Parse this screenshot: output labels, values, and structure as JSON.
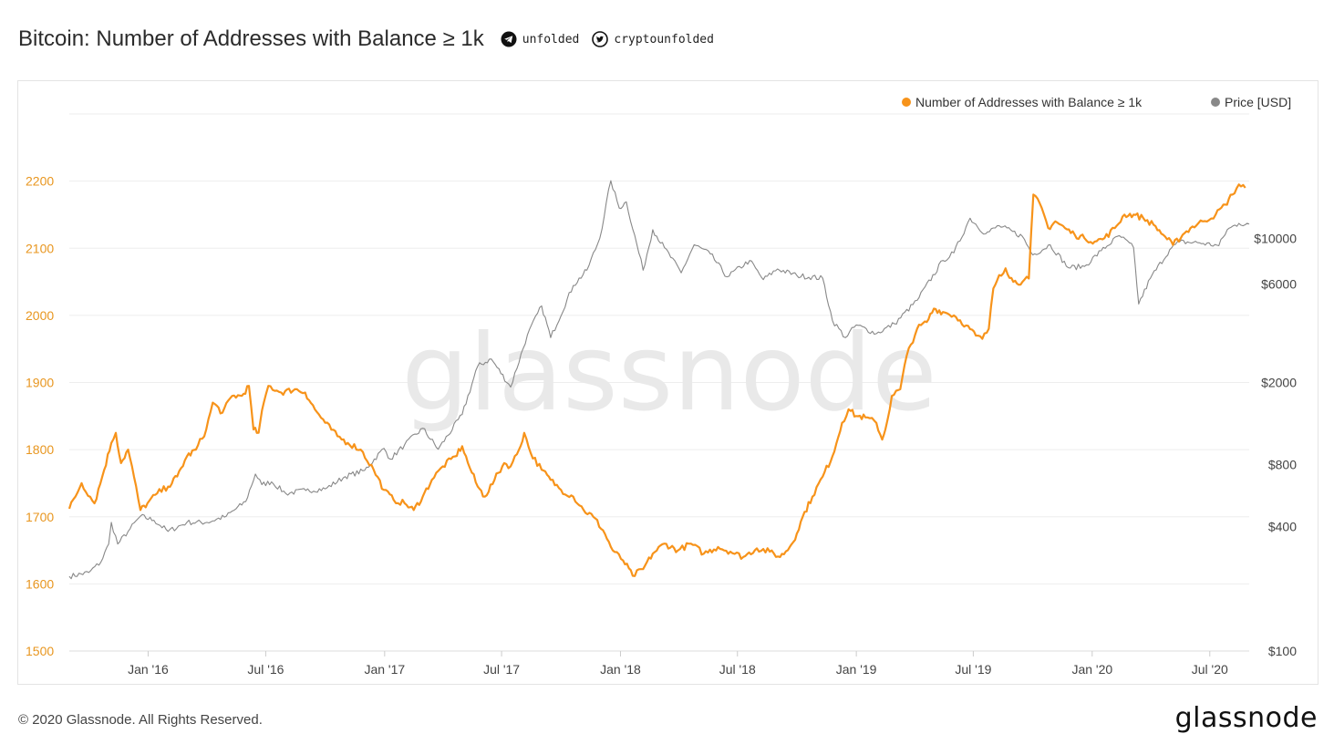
{
  "header": {
    "title": "Bitcoin: Number of Addresses with Balance ≥ 1k",
    "telegram_icon": "telegram-icon",
    "telegram_handle": "unfolded",
    "twitter_icon": "twitter-icon",
    "twitter_handle": "cryptounfolded"
  },
  "watermark": "glassnode",
  "footer": {
    "copyright": "© 2020 Glassnode. All Rights Reserved.",
    "logo": "glassnode"
  },
  "colors": {
    "addresses": "#f7931a",
    "price": "#888888",
    "left_axis_text": "#e8961f",
    "grid": "#eeeeee"
  },
  "chart_data": {
    "type": "line",
    "legend_placement": "top-right",
    "grid": true,
    "x_range": [
      "2015-09-01",
      "2020-08-31"
    ],
    "x_ticks": [
      {
        "date": "2016-01-01",
        "label": "Jan '16"
      },
      {
        "date": "2016-07-01",
        "label": "Jul '16"
      },
      {
        "date": "2017-01-01",
        "label": "Jan '17"
      },
      {
        "date": "2017-07-01",
        "label": "Jul '17"
      },
      {
        "date": "2018-01-01",
        "label": "Jan '18"
      },
      {
        "date": "2018-07-01",
        "label": "Jul '18"
      },
      {
        "date": "2019-01-01",
        "label": "Jan '19"
      },
      {
        "date": "2019-07-01",
        "label": "Jul '19"
      },
      {
        "date": "2020-01-01",
        "label": "Jan '20"
      },
      {
        "date": "2020-07-01",
        "label": "Jul '20"
      }
    ],
    "y_left": {
      "range": [
        1500,
        2300
      ],
      "ticks": [
        1500,
        1600,
        1700,
        1800,
        1900,
        2000,
        2100,
        2200
      ]
    },
    "y_right": {
      "scale": "log",
      "range": [
        100,
        40000
      ],
      "ticks": [
        {
          "value": 100,
          "label": "$100"
        },
        {
          "value": 400,
          "label": "$400"
        },
        {
          "value": 800,
          "label": "$800"
        },
        {
          "value": 2000,
          "label": "$2000"
        },
        {
          "value": 6000,
          "label": "$6000"
        },
        {
          "value": 10000,
          "label": "$10000"
        }
      ]
    },
    "series": [
      {
        "name": "Number of Addresses with Balance ≥ 1k",
        "axis": "left",
        "points": [
          [
            "2015-09-01",
            1712
          ],
          [
            "2015-09-20",
            1750
          ],
          [
            "2015-10-10",
            1720
          ],
          [
            "2015-10-25",
            1770
          ],
          [
            "2015-11-05",
            1810
          ],
          [
            "2015-11-12",
            1825
          ],
          [
            "2015-11-20",
            1780
          ],
          [
            "2015-12-01",
            1800
          ],
          [
            "2015-12-10",
            1760
          ],
          [
            "2015-12-20",
            1710
          ],
          [
            "2015-12-31",
            1720
          ],
          [
            "2016-01-15",
            1735
          ],
          [
            "2016-02-01",
            1745
          ],
          [
            "2016-02-15",
            1760
          ],
          [
            "2016-03-01",
            1790
          ],
          [
            "2016-03-15",
            1800
          ],
          [
            "2016-03-31",
            1830
          ],
          [
            "2016-04-10",
            1870
          ],
          [
            "2016-04-25",
            1855
          ],
          [
            "2016-05-10",
            1880
          ],
          [
            "2016-05-25",
            1880
          ],
          [
            "2016-06-05",
            1895
          ],
          [
            "2016-06-12",
            1830
          ],
          [
            "2016-06-20",
            1825
          ],
          [
            "2016-06-28",
            1870
          ],
          [
            "2016-07-05",
            1895
          ],
          [
            "2016-07-25",
            1885
          ],
          [
            "2016-08-15",
            1890
          ],
          [
            "2016-08-31",
            1885
          ],
          [
            "2016-09-15",
            1860
          ],
          [
            "2016-10-01",
            1840
          ],
          [
            "2016-10-20",
            1820
          ],
          [
            "2016-11-05",
            1810
          ],
          [
            "2016-11-25",
            1800
          ],
          [
            "2016-12-15",
            1770
          ],
          [
            "2016-12-31",
            1740
          ],
          [
            "2017-01-15",
            1725
          ],
          [
            "2017-02-01",
            1720
          ],
          [
            "2017-02-15",
            1710
          ],
          [
            "2017-03-01",
            1730
          ],
          [
            "2017-03-15",
            1755
          ],
          [
            "2017-04-01",
            1775
          ],
          [
            "2017-04-20",
            1790
          ],
          [
            "2017-05-01",
            1805
          ],
          [
            "2017-05-10",
            1780
          ],
          [
            "2017-05-25",
            1745
          ],
          [
            "2017-06-05",
            1730
          ],
          [
            "2017-06-20",
            1755
          ],
          [
            "2017-07-05",
            1780
          ],
          [
            "2017-07-15",
            1775
          ],
          [
            "2017-07-28",
            1800
          ],
          [
            "2017-08-05",
            1825
          ],
          [
            "2017-08-15",
            1795
          ],
          [
            "2017-09-01",
            1770
          ],
          [
            "2017-09-15",
            1755
          ],
          [
            "2017-10-01",
            1740
          ],
          [
            "2017-10-20",
            1730
          ],
          [
            "2017-11-05",
            1710
          ],
          [
            "2017-11-20",
            1700
          ],
          [
            "2017-12-05",
            1680
          ],
          [
            "2017-12-20",
            1650
          ],
          [
            "2018-01-05",
            1635
          ],
          [
            "2018-01-20",
            1612
          ],
          [
            "2018-02-05",
            1622
          ],
          [
            "2018-02-20",
            1645
          ],
          [
            "2018-03-10",
            1660
          ],
          [
            "2018-03-31",
            1650
          ],
          [
            "2018-04-20",
            1660
          ],
          [
            "2018-05-10",
            1645
          ],
          [
            "2018-06-01",
            1655
          ],
          [
            "2018-06-20",
            1648
          ],
          [
            "2018-07-10",
            1640
          ],
          [
            "2018-07-31",
            1653
          ],
          [
            "2018-08-20",
            1648
          ],
          [
            "2018-09-05",
            1640
          ],
          [
            "2018-09-20",
            1655
          ],
          [
            "2018-10-01",
            1675
          ],
          [
            "2018-10-10",
            1700
          ],
          [
            "2018-10-25",
            1730
          ],
          [
            "2018-11-10",
            1760
          ],
          [
            "2018-11-25",
            1790
          ],
          [
            "2018-12-10",
            1840
          ],
          [
            "2018-12-20",
            1860
          ],
          [
            "2019-01-01",
            1850
          ],
          [
            "2019-01-15",
            1848
          ],
          [
            "2019-02-01",
            1840
          ],
          [
            "2019-02-10",
            1815
          ],
          [
            "2019-02-15",
            1830
          ],
          [
            "2019-02-25",
            1880
          ],
          [
            "2019-03-10",
            1890
          ],
          [
            "2019-03-20",
            1940
          ],
          [
            "2019-04-05",
            1980
          ],
          [
            "2019-04-20",
            1990
          ],
          [
            "2019-05-01",
            2010
          ],
          [
            "2019-05-15",
            2005
          ],
          [
            "2019-06-01",
            2000
          ],
          [
            "2019-06-20",
            1985
          ],
          [
            "2019-07-05",
            1970
          ],
          [
            "2019-07-15",
            1965
          ],
          [
            "2019-07-25",
            1980
          ],
          [
            "2019-08-01",
            2040
          ],
          [
            "2019-08-10",
            2060
          ],
          [
            "2019-08-20",
            2070
          ],
          [
            "2019-09-01",
            2050
          ],
          [
            "2019-09-15",
            2050
          ],
          [
            "2019-09-25",
            2055
          ],
          [
            "2019-10-02",
            2180
          ],
          [
            "2019-10-15",
            2160
          ],
          [
            "2019-10-25",
            2130
          ],
          [
            "2019-11-05",
            2140
          ],
          [
            "2019-11-20",
            2130
          ],
          [
            "2019-12-05",
            2120
          ],
          [
            "2019-12-20",
            2115
          ],
          [
            "2020-01-05",
            2110
          ],
          [
            "2020-01-20",
            2115
          ],
          [
            "2020-02-05",
            2130
          ],
          [
            "2020-02-20",
            2150
          ],
          [
            "2020-03-05",
            2150
          ],
          [
            "2020-03-20",
            2145
          ],
          [
            "2020-04-05",
            2135
          ],
          [
            "2020-04-20",
            2120
          ],
          [
            "2020-05-05",
            2105
          ],
          [
            "2020-05-20",
            2120
          ],
          [
            "2020-06-01",
            2130
          ],
          [
            "2020-06-20",
            2140
          ],
          [
            "2020-07-10",
            2150
          ],
          [
            "2020-07-25",
            2165
          ],
          [
            "2020-08-05",
            2180
          ],
          [
            "2020-08-15",
            2195
          ],
          [
            "2020-08-25",
            2190
          ]
        ]
      },
      {
        "name": "Price [USD]",
        "axis": "right",
        "points": [
          [
            "2015-09-01",
            230
          ],
          [
            "2015-10-01",
            240
          ],
          [
            "2015-10-20",
            270
          ],
          [
            "2015-11-01",
            330
          ],
          [
            "2015-11-05",
            420
          ],
          [
            "2015-11-15",
            330
          ],
          [
            "2015-12-01",
            380
          ],
          [
            "2015-12-20",
            450
          ],
          [
            "2016-01-10",
            430
          ],
          [
            "2016-02-01",
            380
          ],
          [
            "2016-03-01",
            420
          ],
          [
            "2016-04-01",
            420
          ],
          [
            "2016-05-01",
            450
          ],
          [
            "2016-05-31",
            530
          ],
          [
            "2016-06-15",
            720
          ],
          [
            "2016-06-25",
            640
          ],
          [
            "2016-07-10",
            660
          ],
          [
            "2016-08-01",
            580
          ],
          [
            "2016-09-01",
            600
          ],
          [
            "2016-10-01",
            610
          ],
          [
            "2016-11-01",
            700
          ],
          [
            "2016-12-01",
            750
          ],
          [
            "2016-12-31",
            960
          ],
          [
            "2017-01-10",
            850
          ],
          [
            "2017-02-01",
            1000
          ],
          [
            "2017-03-01",
            1200
          ],
          [
            "2017-03-25",
            950
          ],
          [
            "2017-05-01",
            1400
          ],
          [
            "2017-05-25",
            2400
          ],
          [
            "2017-06-15",
            2600
          ],
          [
            "2017-07-15",
            1900
          ],
          [
            "2017-08-10",
            3400
          ],
          [
            "2017-09-01",
            4700
          ],
          [
            "2017-09-15",
            3300
          ],
          [
            "2017-10-20",
            5900
          ],
          [
            "2017-11-10",
            7000
          ],
          [
            "2017-11-30",
            10000
          ],
          [
            "2017-12-17",
            19000
          ],
          [
            "2017-12-30",
            14000
          ],
          [
            "2018-01-10",
            15000
          ],
          [
            "2018-02-05",
            7000
          ],
          [
            "2018-02-20",
            11000
          ],
          [
            "2018-03-10",
            9000
          ],
          [
            "2018-04-05",
            6800
          ],
          [
            "2018-04-25",
            9300
          ],
          [
            "2018-05-20",
            8400
          ],
          [
            "2018-06-15",
            6500
          ],
          [
            "2018-07-20",
            7800
          ],
          [
            "2018-08-10",
            6300
          ],
          [
            "2018-09-01",
            7100
          ],
          [
            "2018-10-01",
            6600
          ],
          [
            "2018-11-10",
            6400
          ],
          [
            "2018-11-25",
            4000
          ],
          [
            "2018-12-15",
            3300
          ],
          [
            "2019-01-01",
            3800
          ],
          [
            "2019-02-01",
            3450
          ],
          [
            "2019-03-01",
            3850
          ],
          [
            "2019-04-05",
            5000
          ],
          [
            "2019-05-15",
            7800
          ],
          [
            "2019-06-01",
            8500
          ],
          [
            "2019-06-26",
            12500
          ],
          [
            "2019-07-20",
            10500
          ],
          [
            "2019-08-10",
            11500
          ],
          [
            "2019-09-15",
            10200
          ],
          [
            "2019-10-01",
            8300
          ],
          [
            "2019-10-28",
            9300
          ],
          [
            "2019-11-25",
            7200
          ],
          [
            "2019-12-20",
            7300
          ],
          [
            "2020-01-15",
            8700
          ],
          [
            "2020-02-12",
            10300
          ],
          [
            "2020-03-05",
            9000
          ],
          [
            "2020-03-13",
            4800
          ],
          [
            "2020-03-31",
            6400
          ],
          [
            "2020-04-30",
            8800
          ],
          [
            "2020-05-15",
            9600
          ],
          [
            "2020-06-15",
            9500
          ],
          [
            "2020-07-15",
            9200
          ],
          [
            "2020-07-28",
            11000
          ],
          [
            "2020-08-15",
            11800
          ],
          [
            "2020-08-31",
            11700
          ]
        ]
      }
    ]
  }
}
